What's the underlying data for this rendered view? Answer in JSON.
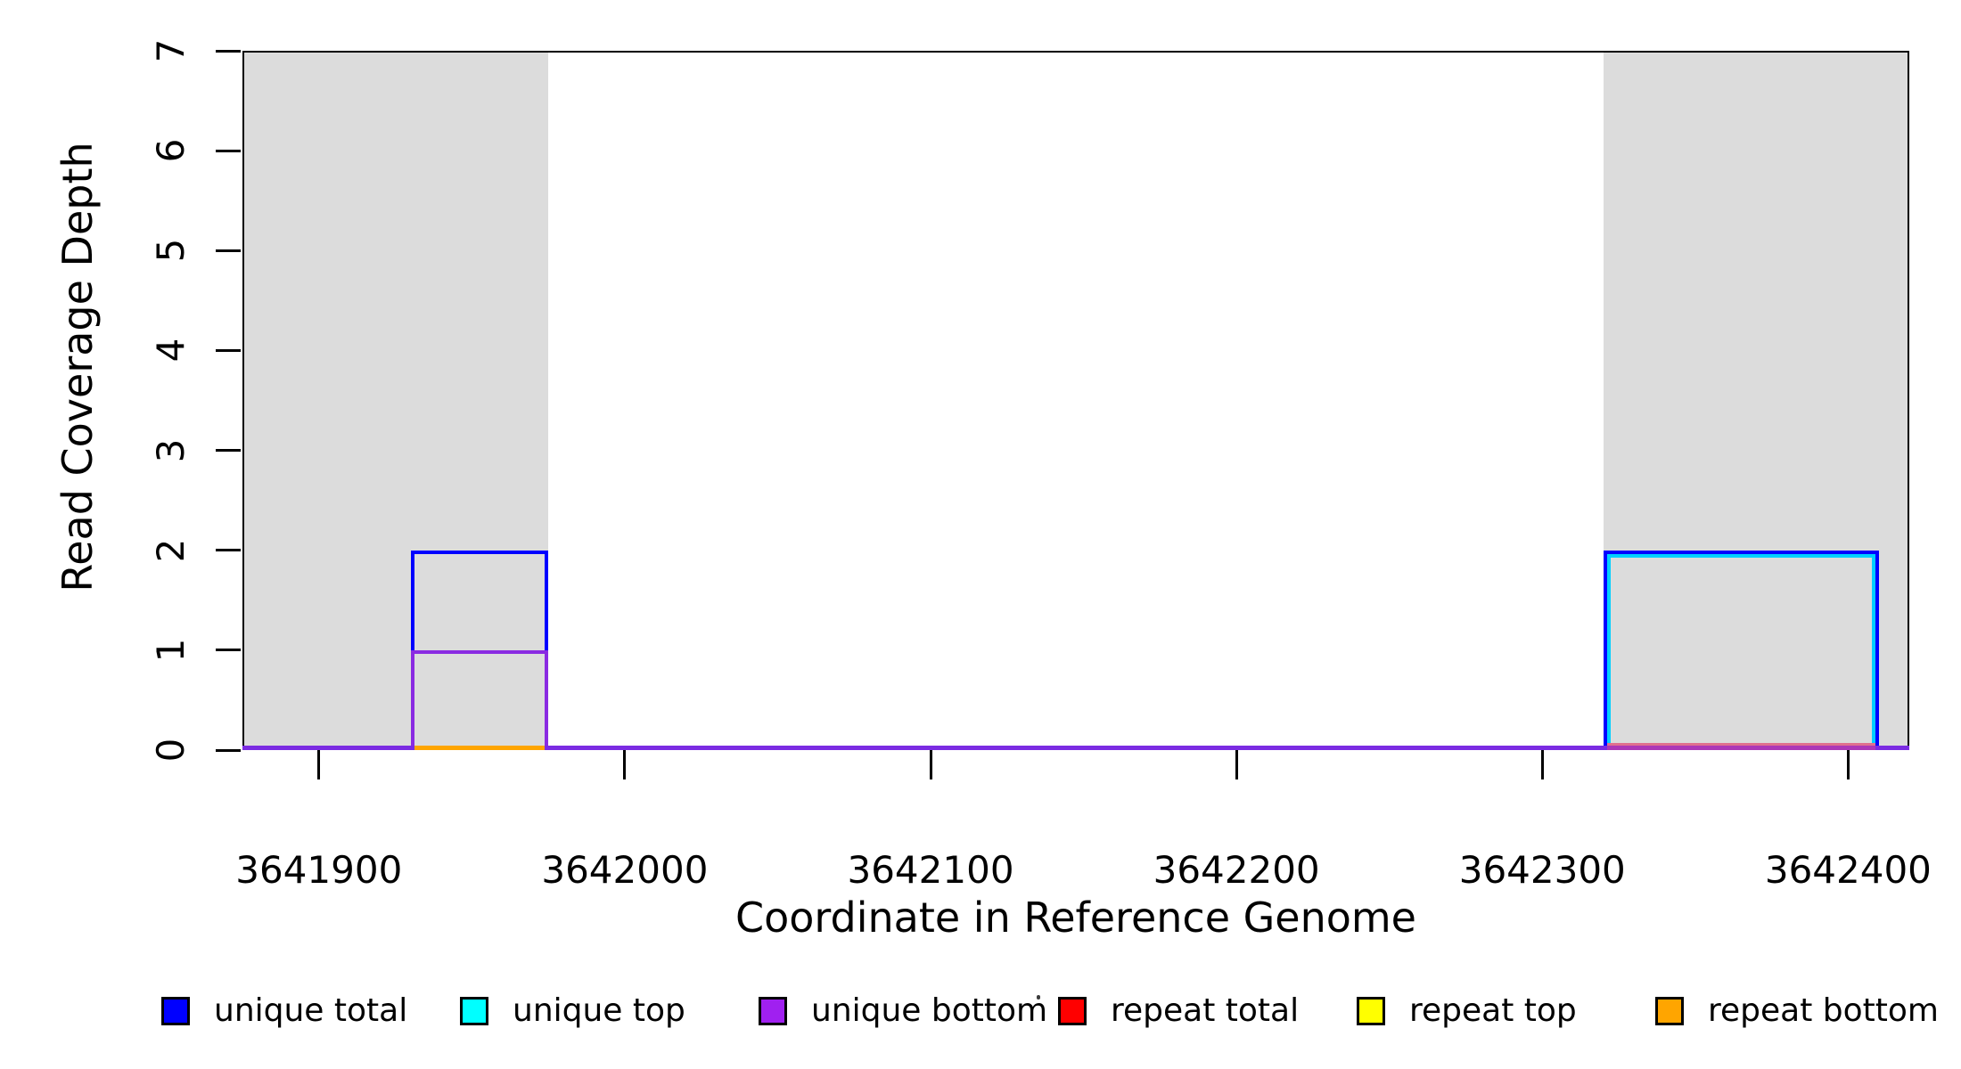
{
  "figure": {
    "xlabel": "Coordinate in Reference Genome",
    "ylabel": "Read Coverage Depth"
  },
  "chart_data": {
    "type": "line",
    "title": "",
    "xlabel": "Coordinate in Reference Genome",
    "ylabel": "Read Coverage Depth",
    "xlim": [
      3641875,
      3642420
    ],
    "ylim": [
      0,
      7
    ],
    "x_ticks": [
      3641900,
      3642000,
      3642100,
      3642200,
      3642300,
      3642400
    ],
    "y_ticks": [
      0,
      1,
      2,
      3,
      4,
      5,
      6,
      7
    ],
    "grid": "off",
    "legend_position": "bottom",
    "repeat_region_color": "#DCDCDC",
    "repeat_regions": [
      {
        "start": 3641875,
        "end": 3641975
      },
      {
        "start": 3642320,
        "end": 3642420
      }
    ],
    "series": [
      {
        "name": "unique total",
        "color": "#0000FF",
        "segments": [
          {
            "start": 3641930,
            "end": 3641975,
            "depth": 2
          },
          {
            "start": 3642320,
            "end": 3642410,
            "depth": 2
          }
        ]
      },
      {
        "name": "unique top",
        "color": "#00FFFF",
        "segments": [
          {
            "start": 3642320,
            "end": 3642410,
            "depth": 2
          }
        ]
      },
      {
        "name": "unique bottom",
        "color": "#A020F0",
        "segments": [
          {
            "start": 3641930,
            "end": 3641975,
            "depth": 1
          }
        ],
        "baseline_depth": 0
      },
      {
        "name": "repeat total",
        "color": "#FF0000",
        "segments": [
          {
            "start": 3642320,
            "end": 3642410,
            "depth": 0
          }
        ]
      },
      {
        "name": "repeat top",
        "color": "#FFFF00",
        "segments": []
      },
      {
        "name": "repeat bottom",
        "color": "#FFA500",
        "segments": [
          {
            "start": 3641930,
            "end": 3641975,
            "depth": 0
          }
        ]
      }
    ],
    "legend": [
      {
        "label": "unique total",
        "color": "#0000FF"
      },
      {
        "label": "unique top",
        "color": "#00FFFF"
      },
      {
        "label": "unique bottom",
        "color": "#A020F0"
      },
      {
        "label": "repeat total",
        "color": "#FF0000"
      },
      {
        "label": "repeat top",
        "color": "#FFFF00"
      },
      {
        "label": "repeat bottom",
        "color": "#FFA500"
      }
    ]
  }
}
